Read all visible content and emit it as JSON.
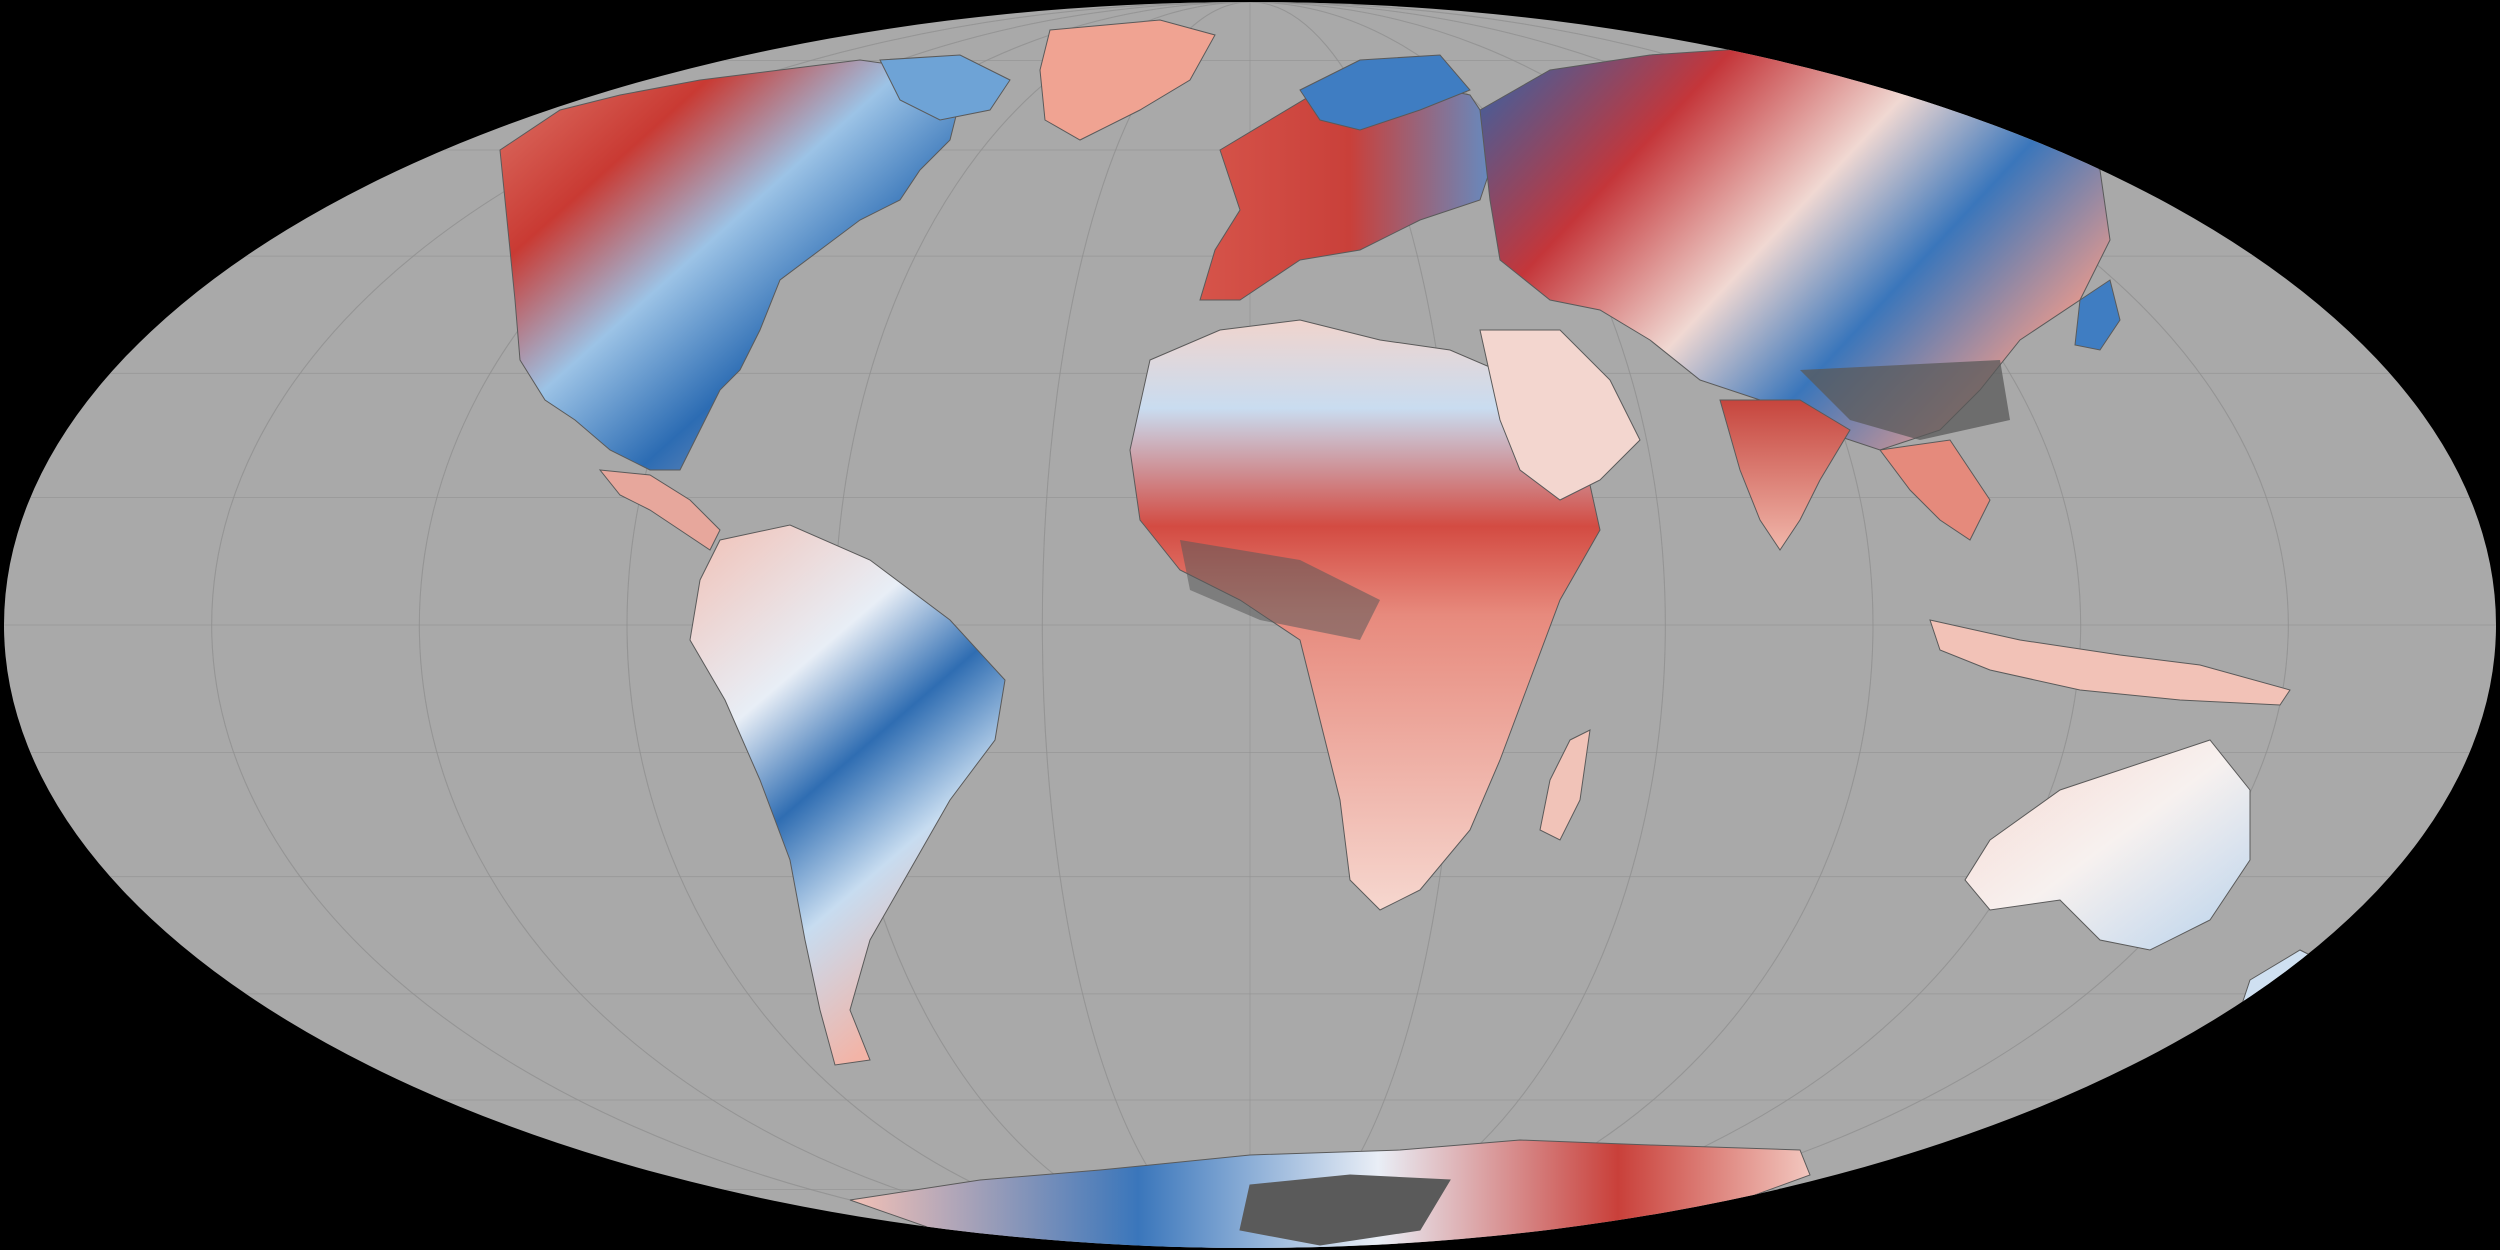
{
  "map": {
    "projection": "mollweide",
    "colors": {
      "background": "#000000",
      "ocean": "#a9a9a9",
      "graticule": "#8f8f8f",
      "no_data": "#5a5a5a",
      "anomaly_strong_warm": "#c62828",
      "anomaly_warm": "#ef9a8a",
      "anomaly_neutral": "#f7f4f2",
      "anomaly_cool": "#9cc3e6",
      "anomaly_strong_cool": "#1f5fa8"
    },
    "regions": [
      "north-america",
      "greenland",
      "south-america",
      "europe",
      "africa",
      "madagascar",
      "asia",
      "arabia",
      "india",
      "southeast-asia",
      "indonesia",
      "australia",
      "new-zealand",
      "antarctica",
      "japan"
    ]
  }
}
